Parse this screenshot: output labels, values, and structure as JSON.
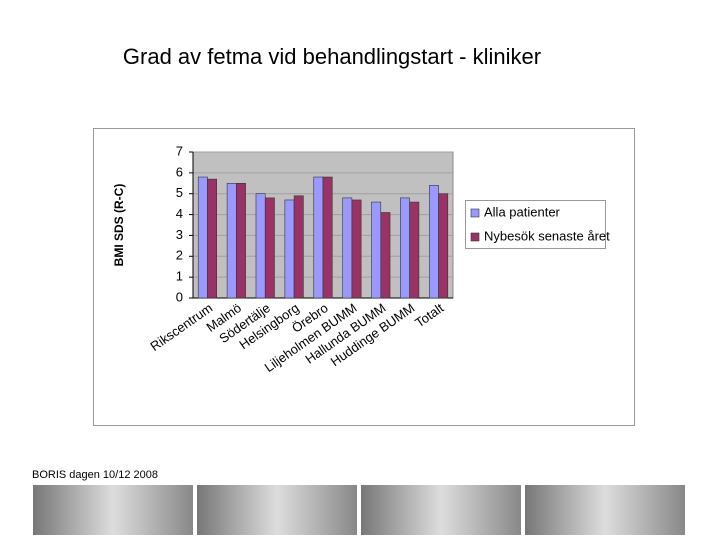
{
  "chart_data": {
    "type": "bar",
    "title": "Grad av fetma vid behandlingstart - kliniker",
    "ylabel": "BMI SDS (R-C)",
    "categories": [
      "Rikscentrum",
      "Malmö",
      "Södertälje",
      "Helsingborg",
      "Örebro",
      "Liljeholmen BUMM",
      "Hallunda BUMM",
      "Huddinge BUMM",
      "Totalt"
    ],
    "series": [
      {
        "name": "Alla patienter",
        "color": "#9999ff",
        "values": [
          5.8,
          5.5,
          5.0,
          4.7,
          5.8,
          4.8,
          4.6,
          4.8,
          5.4
        ]
      },
      {
        "name": "Nybesök senaste året",
        "color": "#993366",
        "values": [
          5.7,
          5.5,
          4.8,
          4.9,
          5.8,
          4.7,
          4.1,
          4.6,
          5.0
        ]
      }
    ],
    "ylim": [
      0,
      7
    ],
    "yticks": [
      0,
      1,
      2,
      3,
      4,
      5,
      6,
      7
    ],
    "grid": true,
    "legend": "right"
  },
  "footer": "BORIS dagen 10/12 2008"
}
